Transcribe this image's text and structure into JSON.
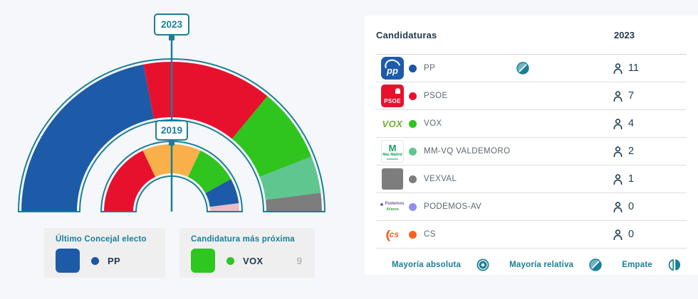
{
  "colors": {
    "accent_teal": "#1a7f96",
    "background": "#f5f7fa",
    "panel_bg": "#ffffff",
    "navy_text": "#24394e",
    "label_gray": "#5b6670",
    "divider": "#dcdfe3",
    "card_bg": "#efeff0",
    "value_gray": "#9aa0a6",
    "relative_majority_light": "#6fb3c3"
  },
  "chart": {
    "markers": {
      "outer": "2023",
      "inner": "2019"
    }
  },
  "chart_data": [
    {
      "type": "pie",
      "subtype": "hemicycle-ring",
      "title": "2023",
      "ring": "outer",
      "total_seats": 25,
      "layout": "half-donut spanning 180 degrees, segments clockwise from left, ordered by seats descending",
      "segments": [
        {
          "party": "PP",
          "seats": 11,
          "color": "#1d5ba8"
        },
        {
          "party": "PSOE",
          "seats": 7,
          "color": "#e8112d"
        },
        {
          "party": "VOX",
          "seats": 4,
          "color": "#2fc41e"
        },
        {
          "party": "MM-VQ VALDEMORO",
          "seats": 2,
          "color": "#5fc68f"
        },
        {
          "party": "VEXVAL",
          "seats": 1,
          "color": "#7d7d7d"
        }
      ]
    },
    {
      "type": "pie",
      "subtype": "hemicycle-ring",
      "title": "2019",
      "ring": "inner",
      "total_seats": 25,
      "layout": "half-donut spanning 180 degrees, segments clockwise from left, ordered by seats descending",
      "segments": [
        {
          "party": "PSOE",
          "seats": 9,
          "color": "#e8112d"
        },
        {
          "party": "CS",
          "seats": 7,
          "color": "#f9b04a"
        },
        {
          "party": "VOX",
          "seats": 5,
          "color": "#2fc41e"
        },
        {
          "party": "PP",
          "seats": 3,
          "color": "#1d5ba8"
        },
        {
          "party": "PODEMOS",
          "seats": 1,
          "color": "#e9bdc4"
        }
      ]
    }
  ],
  "cards": [
    {
      "title": "Último Concejal electo",
      "swatch_color": "#1d5ba8",
      "dot_color": "#1d55a7",
      "label": "PP",
      "value": ""
    },
    {
      "title": "Candidatura más próxima",
      "swatch_color": "#2dc71f",
      "dot_color": "#2bc621",
      "label": "VOX",
      "value": "9"
    }
  ],
  "table": {
    "header": {
      "candidaturas": "Candidaturas",
      "year": "2023"
    },
    "rows": [
      {
        "party": "PP",
        "seats": "11",
        "dot_color": "#1d55a7",
        "logo": "pp",
        "majority": "relativa"
      },
      {
        "party": "PSOE",
        "seats": "7",
        "dot_color": "#e8112d",
        "logo": "psoe",
        "majority": ""
      },
      {
        "party": "VOX",
        "seats": "4",
        "dot_color": "#2fc41e",
        "logo": "vox",
        "majority": ""
      },
      {
        "party": "MM-VQ VALDEMORO",
        "seats": "2",
        "dot_color": "#5fc68f",
        "logo": "mm",
        "majority": ""
      },
      {
        "party": "VEXVAL",
        "seats": "1",
        "dot_color": "#7d7d7d",
        "logo": "vexval",
        "majority": ""
      },
      {
        "party": "PODEMOS-AV",
        "seats": "0",
        "dot_color": "#8f8fee",
        "logo": "podemos",
        "majority": ""
      },
      {
        "party": "CS",
        "seats": "0",
        "dot_color": "#f8601f",
        "logo": "cs",
        "majority": ""
      }
    ],
    "legend": [
      {
        "label": "Mayoría absoluta",
        "icon": "absolute-majority-icon"
      },
      {
        "label": "Mayoría relativa",
        "icon": "relative-majority-icon"
      },
      {
        "label": "Empate",
        "icon": "tie-icon"
      }
    ]
  },
  "logos": {
    "pp_text": "pp",
    "psoe_text": "PSOE",
    "vox_text": "VOX",
    "mm_m": "M",
    "mm_sub": "Más Madrid",
    "podemos_text": "Podemos",
    "podemos_sub": "AVanza",
    "cs_paren": "(",
    "cs_text": "cs"
  }
}
